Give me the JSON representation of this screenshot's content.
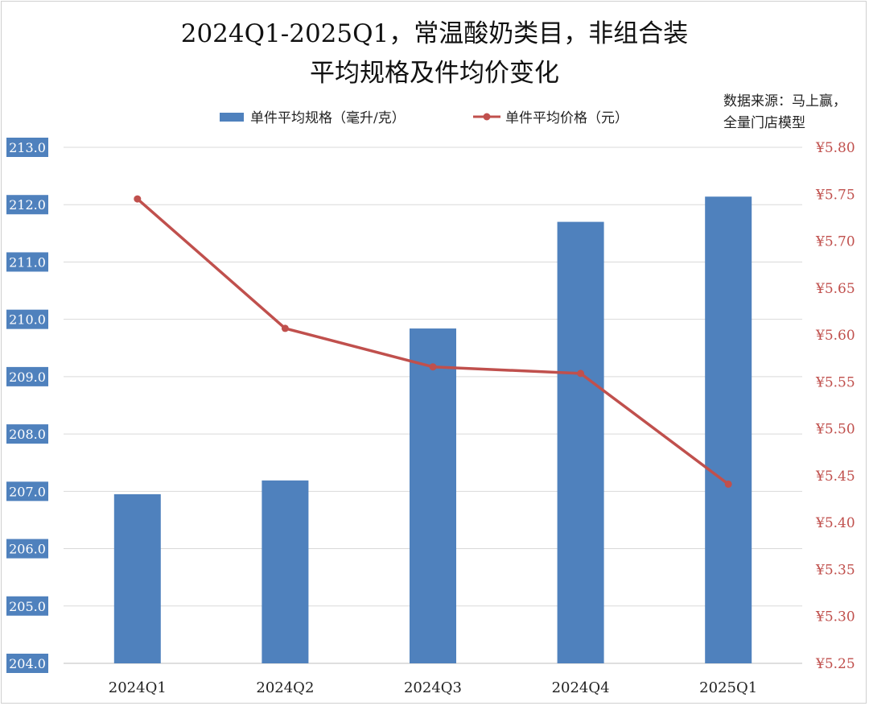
{
  "chart_data": {
    "type": "bar",
    "title_lines": [
      "2024Q1-2025Q1，常温酸奶类目，非组合装",
      "平均规格及件均价变化"
    ],
    "source_lines": [
      "数据来源：马上赢，",
      "全量门店模型"
    ],
    "categories": [
      "2024Q1",
      "2024Q2",
      "2024Q3",
      "2024Q4",
      "2025Q1"
    ],
    "series": [
      {
        "name": "单件平均规格（毫升/克）",
        "type": "bar",
        "axis": "left",
        "color": "#4f81bd",
        "values": [
          206.95,
          207.19,
          209.84,
          211.7,
          212.14
        ]
      },
      {
        "name": "单件平均价格（元）",
        "type": "line",
        "axis": "right",
        "color": "#c0504d",
        "values": [
          5.745,
          5.607,
          5.566,
          5.559,
          5.441
        ]
      }
    ],
    "y_left": {
      "ylim": [
        204.0,
        213.0
      ],
      "ticks": [
        "204.0",
        "205.0",
        "206.0",
        "207.0",
        "208.0",
        "209.0",
        "210.0",
        "211.0",
        "212.0",
        "213.0"
      ],
      "tick_bg": "#4f81bd"
    },
    "y_right": {
      "ylim": [
        5.25,
        5.8
      ],
      "ticks": [
        "¥5.25",
        "¥5.30",
        "¥5.35",
        "¥5.40",
        "¥5.45",
        "¥5.50",
        "¥5.55",
        "¥5.60",
        "¥5.65",
        "¥5.70",
        "¥5.75",
        "¥5.80"
      ],
      "color": "#c0504d"
    },
    "grid": true,
    "legend_position": "top"
  }
}
